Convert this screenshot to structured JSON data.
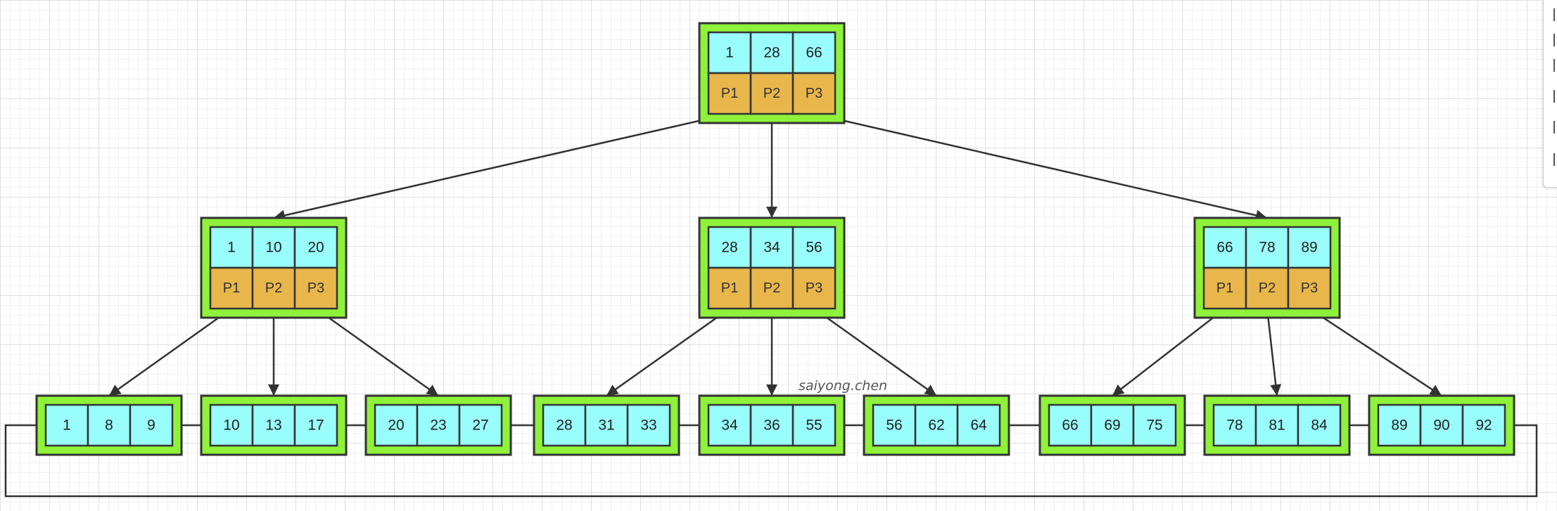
{
  "watermark": "saiyong.chen",
  "colors": {
    "node_fill": "#8ff23a",
    "key_fill": "#98fdfb",
    "pointer_fill": "#e8b64b",
    "line": "#333333"
  },
  "root": {
    "keys": [
      "1",
      "28",
      "66"
    ],
    "pointers": [
      "P1",
      "P2",
      "P3"
    ]
  },
  "internal_nodes": [
    {
      "keys": [
        "1",
        "10",
        "20"
      ],
      "pointers": [
        "P1",
        "P2",
        "P3"
      ]
    },
    {
      "keys": [
        "28",
        "34",
        "56"
      ],
      "pointers": [
        "P1",
        "P2",
        "P3"
      ]
    },
    {
      "keys": [
        "66",
        "78",
        "89"
      ],
      "pointers": [
        "P1",
        "P2",
        "P3"
      ]
    }
  ],
  "leaves": [
    [
      "1",
      "8",
      "9"
    ],
    [
      "10",
      "13",
      "17"
    ],
    [
      "20",
      "23",
      "27"
    ],
    [
      "28",
      "31",
      "33"
    ],
    [
      "34",
      "36",
      "55"
    ],
    [
      "56",
      "62",
      "64"
    ],
    [
      "66",
      "69",
      "75"
    ],
    [
      "78",
      "81",
      "84"
    ],
    [
      "89",
      "90",
      "92"
    ]
  ]
}
